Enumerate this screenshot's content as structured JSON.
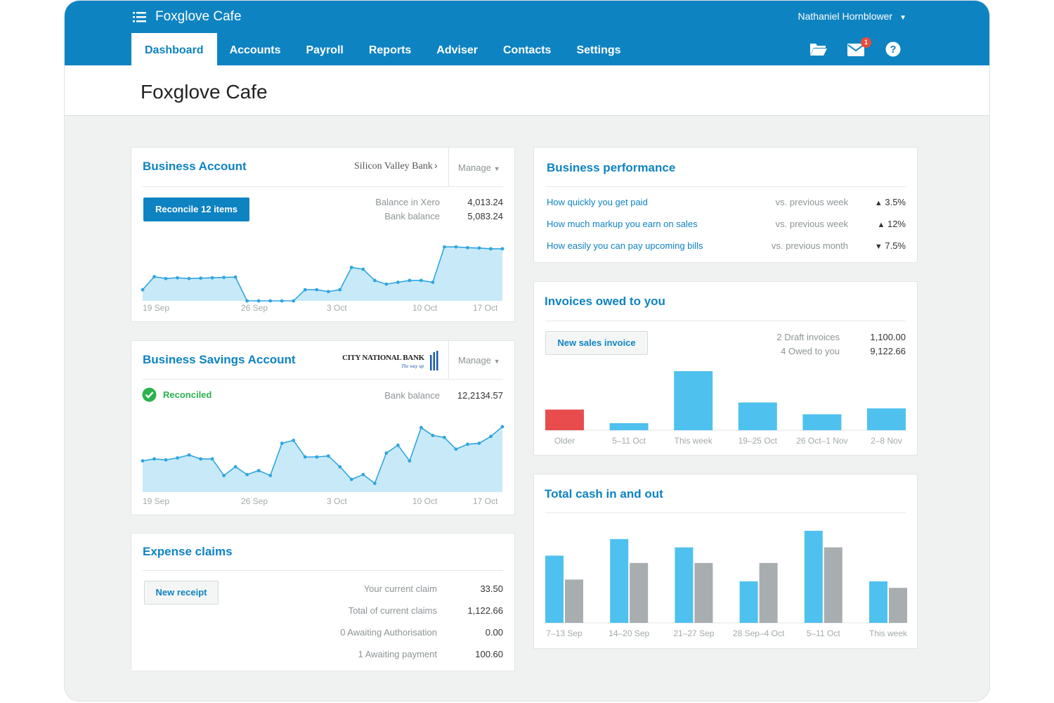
{
  "app": {
    "name": "Foxglove Cafe",
    "user": "Nathaniel Hornblower"
  },
  "nav": {
    "tabs": [
      {
        "label": "Dashboard",
        "active": true
      },
      {
        "label": "Accounts"
      },
      {
        "label": "Payroll"
      },
      {
        "label": "Reports"
      },
      {
        "label": "Adviser"
      },
      {
        "label": "Contacts"
      },
      {
        "label": "Settings"
      }
    ],
    "icons": [
      "folder-icon",
      "mail-icon",
      "help-icon"
    ],
    "mail_badge": "1"
  },
  "page": {
    "title": "Foxglove Cafe"
  },
  "business_account": {
    "title": "Business Account",
    "bank": "Silicon Valley Bank",
    "manage": "Manage",
    "reconcile": "Reconcile 12 items",
    "balance_xero_label": "Balance in Xero",
    "balance_xero": "4,013.24",
    "bank_balance_label": "Bank balance",
    "bank_balance": "5,083.24",
    "x_labels": [
      "19 Sep",
      "26 Sep",
      "3 Oct",
      "10 Oct",
      "17 Oct"
    ],
    "series": [
      0.3,
      0.65,
      0.6,
      0.62,
      0.6,
      0.61,
      0.62,
      0.63,
      0.64,
      0.0,
      0.0,
      0.0,
      0.0,
      0.0,
      0.3,
      0.3,
      0.25,
      0.3,
      0.9,
      0.85,
      0.55,
      0.45,
      0.5,
      0.55,
      0.55,
      0.5,
      1.45,
      1.45,
      1.43,
      1.42,
      1.4,
      1.4
    ]
  },
  "savings_account": {
    "title": "Business Savings Account",
    "bank": "CITY NATIONAL BANK",
    "bank_tagline": "The way up",
    "manage": "Manage",
    "status": "Reconciled",
    "bank_balance_label": "Bank balance",
    "bank_balance": "12,2134.57",
    "x_labels": [
      "19 Sep",
      "26 Sep",
      "3 Oct",
      "10 Oct",
      "17 Oct"
    ],
    "series": [
      0.2,
      0.3,
      0.25,
      0.35,
      0.5,
      0.3,
      0.3,
      -0.55,
      -0.1,
      -0.5,
      -0.3,
      -0.55,
      1.1,
      1.25,
      0.4,
      0.4,
      0.45,
      -0.1,
      -0.75,
      -0.5,
      -0.95,
      0.6,
      1.0,
      0.2,
      1.9,
      1.5,
      1.4,
      0.8,
      1.05,
      1.1,
      1.45,
      1.95
    ]
  },
  "expense_claims": {
    "title": "Expense claims",
    "new_receipt": "New receipt",
    "rows": [
      {
        "label": "Your current claim",
        "value": "33.50"
      },
      {
        "label": "Total of current claims",
        "value": "1,122.66"
      },
      {
        "label": "0 Awaiting Authorisation",
        "value": "0.00"
      },
      {
        "label": "1 Awaiting payment",
        "value": "100.60"
      }
    ]
  },
  "business_performance": {
    "title": "Business performance",
    "rows": [
      {
        "label": "How quickly you get paid",
        "compare": "vs. previous week",
        "direction": "up",
        "value": "3.5%"
      },
      {
        "label": "How much markup you earn on sales",
        "compare": "vs. previous week",
        "direction": "up",
        "value": "12%"
      },
      {
        "label": "How easily you can pay upcoming bills",
        "compare": "vs. previous month",
        "direction": "down",
        "value": "7.5%"
      }
    ]
  },
  "invoices": {
    "title": "Invoices owed to you",
    "new_invoice": "New sales invoice",
    "draft_label": "2 Draft invoices",
    "draft_value": "1,100.00",
    "owed_label": "4 Owed to you",
    "owed_value": "9,122.66",
    "chart_data": {
      "type": "bar",
      "categories": [
        "Older",
        "5–11 Oct",
        "This week",
        "19–25 Oct",
        "26 Oct–1 Nov",
        "2–8 Nov"
      ],
      "values": [
        35,
        12,
        100,
        47,
        27,
        37
      ],
      "colors": [
        "#e84c4c",
        "#4fc1ee",
        "#4fc1ee",
        "#4fc1ee",
        "#4fc1ee",
        "#4fc1ee"
      ]
    }
  },
  "cash": {
    "title": "Total cash in and out",
    "chart_data": {
      "type": "bar",
      "categories": [
        "7–13 Sep",
        "14–20 Sep",
        "21–27 Sep",
        "28 Sep–4 Oct",
        "5–11 Oct",
        "This week"
      ],
      "series": [
        {
          "values": [
            73,
            91,
            82,
            45,
            100,
            45
          ],
          "color": "#4fc1ee"
        },
        {
          "values": [
            47,
            65,
            65,
            65,
            82,
            38
          ],
          "color": "#a8adb0"
        }
      ]
    }
  }
}
